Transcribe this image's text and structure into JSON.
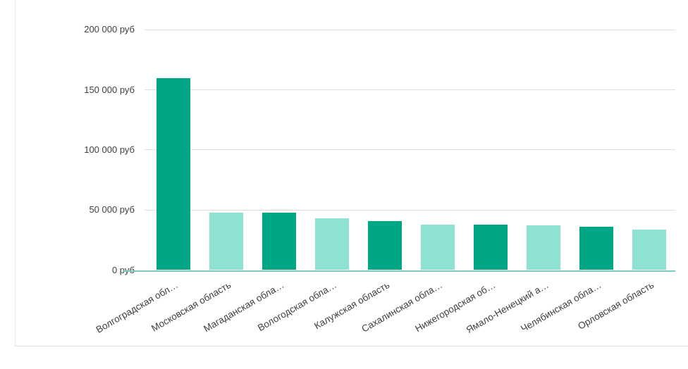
{
  "chart_data": {
    "type": "bar",
    "title": "",
    "xlabel": "",
    "ylabel": "",
    "unit": "руб",
    "categories": [
      "Волгоградская обл…",
      "Московская область",
      "Магаданская обла…",
      "Вологодская обла…",
      "Калужская область",
      "Сахалинская обла…",
      "Нижегородская об…",
      "Ямало-Ненецкий а…",
      "Челябинская обла…",
      "Орловская область"
    ],
    "values": [
      160000,
      48000,
      47500,
      43000,
      40500,
      38000,
      38000,
      37500,
      36000,
      33500
    ],
    "ylim": [
      0,
      200000
    ],
    "y_ticks": [
      {
        "value": 0,
        "label": "0 руб"
      },
      {
        "value": 50000,
        "label": "50 000 руб"
      },
      {
        "value": 100000,
        "label": "100 000 руб"
      },
      {
        "value": 150000,
        "label": "150 000 руб"
      },
      {
        "value": 200000,
        "label": "200 000 руб"
      }
    ],
    "grid": true,
    "legend": "none",
    "colors": {
      "bar_dark": "#00a785",
      "bar_light": "#8de2d3",
      "baseline": "#7dcbbb",
      "gridline": "#e0e0e0",
      "tick_text": "#404040"
    }
  }
}
